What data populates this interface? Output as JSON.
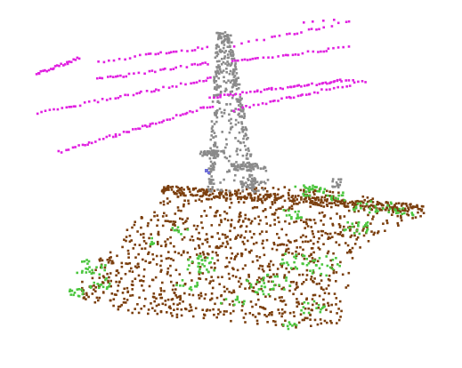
{
  "scene": {
    "background": "#ffffff",
    "classes": [
      {
        "id": "ground",
        "color": "#7b3f0e"
      },
      {
        "id": "vegetation",
        "color": "#4cc63f"
      },
      {
        "id": "pylon",
        "color": "#8a8a8a"
      },
      {
        "id": "wire",
        "color": "#e020e0"
      },
      {
        "id": "other",
        "color": "#6f6fd8"
      }
    ]
  }
}
